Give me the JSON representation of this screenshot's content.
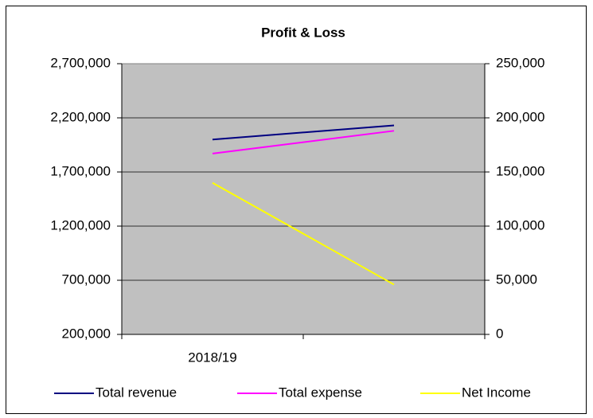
{
  "chart_data": {
    "type": "line",
    "title": "Profit & Loss",
    "categories": [
      "2018/19",
      null
    ],
    "series": [
      {
        "name": "Total revenue",
        "color": "#000080",
        "values": [
          2000000,
          2130000
        ]
      },
      {
        "name": "Total expense",
        "color": "#ff00ff",
        "values": [
          1870000,
          2080000
        ]
      },
      {
        "name": "Net Income",
        "color": "#ffff00",
        "axis": "y2",
        "values": [
          140000,
          46000
        ]
      }
    ],
    "ylim": [
      200000,
      2700000
    ],
    "yticks": [
      {
        "value": 200000,
        "label": "200,000"
      },
      {
        "value": 700000,
        "label": "700,000"
      },
      {
        "value": 1200000,
        "label": "1,200,000"
      },
      {
        "value": 1700000,
        "label": "1,700,000"
      },
      {
        "value": 2200000,
        "label": "2,200,000"
      },
      {
        "value": 2700000,
        "label": "2,700,000"
      }
    ],
    "y2lim": [
      0,
      250000
    ],
    "y2ticks": [
      0,
      {
        "value": 50000,
        "label": "50,000"
      },
      {
        "value": 100000,
        "label": "100,000"
      },
      {
        "value": 150000,
        "label": "150,000"
      },
      {
        "value": 200000,
        "label": "200,000"
      },
      {
        "value": 250000,
        "label": "250,000"
      }
    ],
    "grid": true,
    "legend": "bottom"
  }
}
